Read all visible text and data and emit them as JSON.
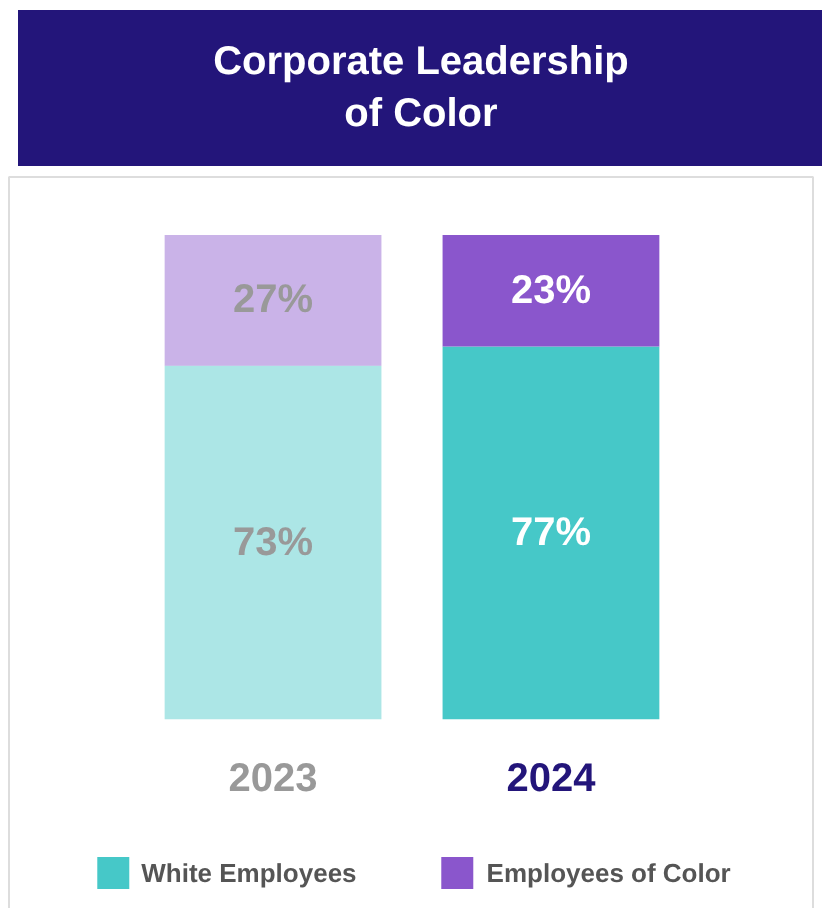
{
  "chart_data": {
    "type": "bar",
    "title": "Corporate Leadership\nof Color",
    "categories": [
      "2023",
      "2024"
    ],
    "stacked": true,
    "legend": "bottom",
    "series": [
      {
        "name": "White Employees",
        "color": "#46c8c8",
        "values": [
          73,
          77
        ],
        "value_labels": [
          "73%",
          "77%"
        ]
      },
      {
        "name": "Employees of Color",
        "color": "#8a56cc",
        "values": [
          27,
          23
        ],
        "value_labels": [
          "27%",
          "23%"
        ]
      }
    ]
  }
}
